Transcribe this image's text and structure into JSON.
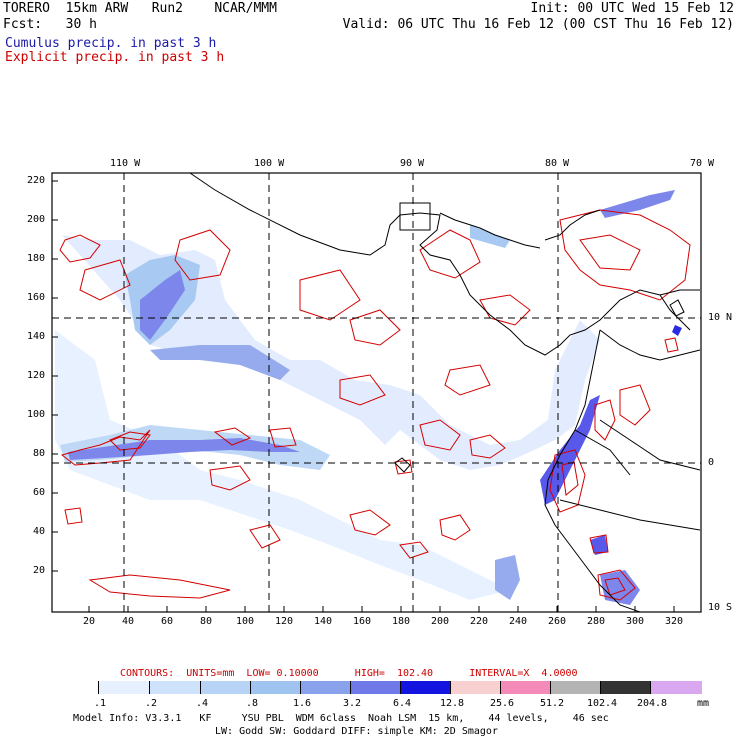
{
  "header": {
    "model": "TORERO  15km ARW   Run2    NCAR/MMM",
    "init": "Init: 00 UTC Wed 15 Feb 12",
    "fcst": "Fcst:   30 h",
    "valid": "Valid: 06 UTC Thu 16 Feb 12 (00 CST Thu 16 Feb 12)",
    "legend_cumulus": "Cumulus precip. in past 3 h",
    "legend_explicit": "Explicit precip. in past 3 h",
    "color_cumulus": "#1a1aa8",
    "color_explicit": "#cc0000"
  },
  "map": {
    "lon_labels": [
      "110 W",
      "100 W",
      "90 W",
      "80 W",
      "70 W"
    ],
    "lat_labels": [
      "10 N",
      "0",
      "10 S"
    ],
    "y_ticks": [
      "220",
      "200",
      "180",
      "160",
      "140",
      "120",
      "100",
      "80",
      "60",
      "40",
      "20"
    ],
    "x_ticks": [
      "20",
      "40",
      "60",
      "80",
      "100",
      "120",
      "140",
      "160",
      "180",
      "200",
      "220",
      "240",
      "260",
      "280",
      "300",
      "320"
    ]
  },
  "contours_line": "CONTOURS:  UNITS=mm  LOW= 0.10000      HIGH=  102.40      INTERVAL=X  4.0000",
  "colorbar": {
    "colors": [
      "#ffffff",
      "#e6f0ff",
      "#cfe2fb",
      "#b7d4f6",
      "#9fc4f0",
      "#8aa2ec",
      "#6f7ae8",
      "#4646e8",
      "#1414e0",
      "#f8d0d0",
      "#f48ab8",
      "#b4b4b4",
      "#333333",
      "#d9a8f0"
    ],
    "labels": [
      ".1",
      ".2",
      ".4",
      ".8",
      "1.6",
      "3.2",
      "6.4",
      "12.8",
      "25.6",
      "51.2",
      "102.4",
      "204.8"
    ],
    "unit": "mm"
  },
  "footer": {
    "line1": "Model Info: V3.3.1   KF     YSU PBL  WDM 6class  Noah LSM  15 km,    44 levels,    46 sec",
    "line2": "LW: Godd SW: Goddard DIFF: simple KM: 2D Smagor"
  }
}
